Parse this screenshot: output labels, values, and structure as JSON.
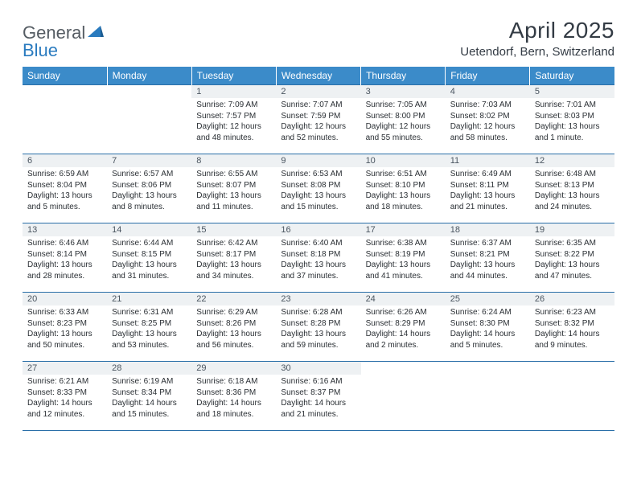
{
  "logo": {
    "part1": "General",
    "part2": "Blue",
    "triangle_color": "#2a7bbf"
  },
  "header": {
    "title": "April 2025",
    "location": "Uetendorf, Bern, Switzerland"
  },
  "colors": {
    "header_bg": "#3b8bc9",
    "header_fg": "#ffffff",
    "daynum_bg": "#eef1f3",
    "daynum_fg": "#4a5560",
    "rule": "#2a6fa8",
    "text": "#2a2f34"
  },
  "weekdays": [
    "Sunday",
    "Monday",
    "Tuesday",
    "Wednesday",
    "Thursday",
    "Friday",
    "Saturday"
  ],
  "first_weekday_index": 2,
  "days": [
    {
      "n": 1,
      "sunrise": "7:09 AM",
      "sunset": "7:57 PM",
      "daylight": "12 hours and 48 minutes."
    },
    {
      "n": 2,
      "sunrise": "7:07 AM",
      "sunset": "7:59 PM",
      "daylight": "12 hours and 52 minutes."
    },
    {
      "n": 3,
      "sunrise": "7:05 AM",
      "sunset": "8:00 PM",
      "daylight": "12 hours and 55 minutes."
    },
    {
      "n": 4,
      "sunrise": "7:03 AM",
      "sunset": "8:02 PM",
      "daylight": "12 hours and 58 minutes."
    },
    {
      "n": 5,
      "sunrise": "7:01 AM",
      "sunset": "8:03 PM",
      "daylight": "13 hours and 1 minute."
    },
    {
      "n": 6,
      "sunrise": "6:59 AM",
      "sunset": "8:04 PM",
      "daylight": "13 hours and 5 minutes."
    },
    {
      "n": 7,
      "sunrise": "6:57 AM",
      "sunset": "8:06 PM",
      "daylight": "13 hours and 8 minutes."
    },
    {
      "n": 8,
      "sunrise": "6:55 AM",
      "sunset": "8:07 PM",
      "daylight": "13 hours and 11 minutes."
    },
    {
      "n": 9,
      "sunrise": "6:53 AM",
      "sunset": "8:08 PM",
      "daylight": "13 hours and 15 minutes."
    },
    {
      "n": 10,
      "sunrise": "6:51 AM",
      "sunset": "8:10 PM",
      "daylight": "13 hours and 18 minutes."
    },
    {
      "n": 11,
      "sunrise": "6:49 AM",
      "sunset": "8:11 PM",
      "daylight": "13 hours and 21 minutes."
    },
    {
      "n": 12,
      "sunrise": "6:48 AM",
      "sunset": "8:13 PM",
      "daylight": "13 hours and 24 minutes."
    },
    {
      "n": 13,
      "sunrise": "6:46 AM",
      "sunset": "8:14 PM",
      "daylight": "13 hours and 28 minutes."
    },
    {
      "n": 14,
      "sunrise": "6:44 AM",
      "sunset": "8:15 PM",
      "daylight": "13 hours and 31 minutes."
    },
    {
      "n": 15,
      "sunrise": "6:42 AM",
      "sunset": "8:17 PM",
      "daylight": "13 hours and 34 minutes."
    },
    {
      "n": 16,
      "sunrise": "6:40 AM",
      "sunset": "8:18 PM",
      "daylight": "13 hours and 37 minutes."
    },
    {
      "n": 17,
      "sunrise": "6:38 AM",
      "sunset": "8:19 PM",
      "daylight": "13 hours and 41 minutes."
    },
    {
      "n": 18,
      "sunrise": "6:37 AM",
      "sunset": "8:21 PM",
      "daylight": "13 hours and 44 minutes."
    },
    {
      "n": 19,
      "sunrise": "6:35 AM",
      "sunset": "8:22 PM",
      "daylight": "13 hours and 47 minutes."
    },
    {
      "n": 20,
      "sunrise": "6:33 AM",
      "sunset": "8:23 PM",
      "daylight": "13 hours and 50 minutes."
    },
    {
      "n": 21,
      "sunrise": "6:31 AM",
      "sunset": "8:25 PM",
      "daylight": "13 hours and 53 minutes."
    },
    {
      "n": 22,
      "sunrise": "6:29 AM",
      "sunset": "8:26 PM",
      "daylight": "13 hours and 56 minutes."
    },
    {
      "n": 23,
      "sunrise": "6:28 AM",
      "sunset": "8:28 PM",
      "daylight": "13 hours and 59 minutes."
    },
    {
      "n": 24,
      "sunrise": "6:26 AM",
      "sunset": "8:29 PM",
      "daylight": "14 hours and 2 minutes."
    },
    {
      "n": 25,
      "sunrise": "6:24 AM",
      "sunset": "8:30 PM",
      "daylight": "14 hours and 5 minutes."
    },
    {
      "n": 26,
      "sunrise": "6:23 AM",
      "sunset": "8:32 PM",
      "daylight": "14 hours and 9 minutes."
    },
    {
      "n": 27,
      "sunrise": "6:21 AM",
      "sunset": "8:33 PM",
      "daylight": "14 hours and 12 minutes."
    },
    {
      "n": 28,
      "sunrise": "6:19 AM",
      "sunset": "8:34 PM",
      "daylight": "14 hours and 15 minutes."
    },
    {
      "n": 29,
      "sunrise": "6:18 AM",
      "sunset": "8:36 PM",
      "daylight": "14 hours and 18 minutes."
    },
    {
      "n": 30,
      "sunrise": "6:16 AM",
      "sunset": "8:37 PM",
      "daylight": "14 hours and 21 minutes."
    }
  ],
  "labels": {
    "sunrise": "Sunrise: ",
    "sunset": "Sunset: ",
    "daylight": "Daylight: "
  }
}
